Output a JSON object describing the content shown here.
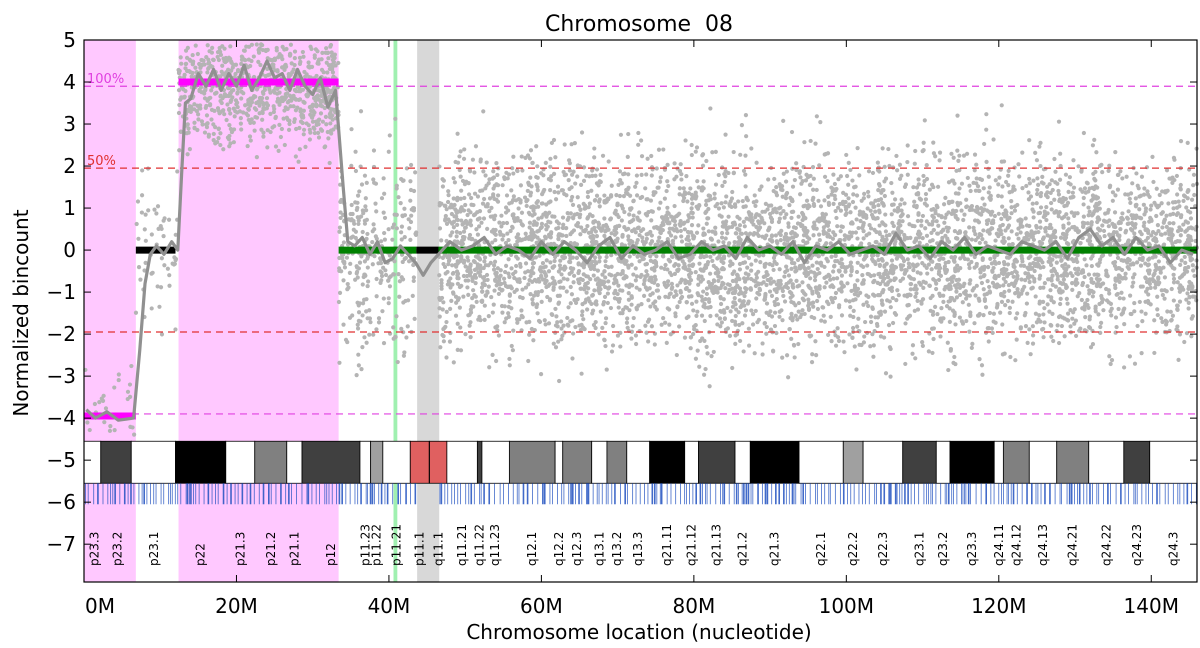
{
  "chart_data": {
    "type": "scatter",
    "title": "Chromosome  08",
    "xlabel": "Chromosome location (nucleotide)",
    "ylabel": "Normalized bincount",
    "xlim": [
      0,
      146
    ],
    "ylim": [
      -7.9,
      5
    ],
    "x_unit": "M nucleotides",
    "y_ticks": [
      5,
      4,
      3,
      2,
      1,
      0,
      -1,
      -2,
      -3,
      -4,
      -5,
      -6,
      -7
    ],
    "x_ticks": [
      0,
      20,
      40,
      60,
      80,
      100,
      120,
      140
    ],
    "x_tick_labels": [
      "0M",
      "20M",
      "40M",
      "60M",
      "80M",
      "100M",
      "120M",
      "140M"
    ],
    "reference_lines": [
      {
        "y": 3.9,
        "label": "100%",
        "color": "#e040e0",
        "style": "dashed"
      },
      {
        "y": 1.95,
        "label": "50%",
        "color": "#e03030",
        "style": "dashed"
      },
      {
        "y": -1.95,
        "label": "",
        "color": "#e03030",
        "style": "dashed"
      },
      {
        "y": -3.9,
        "label": "",
        "color": "#e040e0",
        "style": "dashed"
      }
    ],
    "shaded_regions": [
      {
        "x0": 0,
        "x1": 6.8,
        "color": "#ffc8ff",
        "meaning": "loss"
      },
      {
        "x0": 12.4,
        "x1": 33.4,
        "color": "#ffc8ff",
        "meaning": "gain"
      },
      {
        "x0": 43.7,
        "x1": 46.6,
        "color": "#d8d8d8",
        "meaning": "centromere"
      },
      {
        "x0": 40.6,
        "x1": 41.1,
        "color": "#a0f0b0",
        "meaning": "marker"
      }
    ],
    "segments": [
      {
        "x0": 0,
        "x1": 6.8,
        "y": -3.95,
        "color": "#ff00ff"
      },
      {
        "x0": 6.8,
        "x1": 12.0,
        "y": 0.0,
        "color": "#000000"
      },
      {
        "x0": 12.4,
        "x1": 33.4,
        "y": 4.0,
        "color": "#ff00ff"
      },
      {
        "x0": 33.4,
        "x1": 43.6,
        "y": 0.0,
        "color": "#008000"
      },
      {
        "x0": 43.6,
        "x1": 46.5,
        "y": 0.0,
        "color": "#000000"
      },
      {
        "x0": 46.5,
        "x1": 146,
        "y": 0.0,
        "color": "#008000"
      }
    ],
    "smoothed_line": {
      "color": "#909090",
      "points": [
        [
          0.3,
          -3.8
        ],
        [
          1.5,
          -4.0
        ],
        [
          3,
          -3.85
        ],
        [
          4.5,
          -4.05
        ],
        [
          6.5,
          -4.0
        ],
        [
          7.3,
          -2.4
        ],
        [
          8,
          -0.8
        ],
        [
          8.7,
          -0.1
        ],
        [
          9.5,
          0.1
        ],
        [
          10.5,
          -0.1
        ],
        [
          11.5,
          0.2
        ],
        [
          12.3,
          0.0
        ],
        [
          12.8,
          1.8
        ],
        [
          13.3,
          3.5
        ],
        [
          14,
          3.6
        ],
        [
          15,
          4.2
        ],
        [
          16,
          3.9
        ],
        [
          17,
          4.3
        ],
        [
          18,
          3.8
        ],
        [
          19,
          4.2
        ],
        [
          20,
          3.9
        ],
        [
          21,
          4.4
        ],
        [
          22,
          3.8
        ],
        [
          23,
          4.1
        ],
        [
          24,
          4.5
        ],
        [
          25,
          4.1
        ],
        [
          26,
          4.2
        ],
        [
          27,
          3.8
        ],
        [
          28,
          4.3
        ],
        [
          29,
          3.9
        ],
        [
          30,
          3.7
        ],
        [
          31,
          4.1
        ],
        [
          32,
          3.4
        ],
        [
          33,
          3.8
        ],
        [
          34,
          1.5
        ],
        [
          34.6,
          0.2
        ],
        [
          35.5,
          0.1
        ],
        [
          36.5,
          0.3
        ],
        [
          37.5,
          -0.1
        ],
        [
          38.5,
          0.2
        ],
        [
          39.5,
          -0.3
        ],
        [
          40.5,
          -0.2
        ],
        [
          41.5,
          0.1
        ],
        [
          42.5,
          -0.1
        ],
        [
          43.5,
          -0.3
        ],
        [
          44.5,
          -0.6
        ],
        [
          45.5,
          -0.3
        ],
        [
          46.5,
          -0.1
        ],
        [
          48,
          0.2
        ],
        [
          49.5,
          0.0
        ],
        [
          51,
          0.1
        ],
        [
          52.5,
          0.3
        ],
        [
          54,
          -0.1
        ],
        [
          55.5,
          0.1
        ],
        [
          57,
          0.0
        ],
        [
          58.5,
          -0.2
        ],
        [
          60,
          0.2
        ],
        [
          61.5,
          -0.1
        ],
        [
          63,
          0.2
        ],
        [
          64.5,
          0.0
        ],
        [
          66,
          -0.3
        ],
        [
          67.5,
          0.1
        ],
        [
          69,
          0.3
        ],
        [
          70.5,
          -0.2
        ],
        [
          72,
          0.1
        ],
        [
          73.5,
          -0.1
        ],
        [
          75,
          0.0
        ],
        [
          76.5,
          0.2
        ],
        [
          78,
          -0.2
        ],
        [
          79.5,
          -0.1
        ],
        [
          81,
          0.2
        ],
        [
          82.5,
          0.0
        ],
        [
          84,
          0.1
        ],
        [
          85.5,
          -0.2
        ],
        [
          87,
          0.3
        ],
        [
          88.5,
          0.0
        ],
        [
          90,
          0.1
        ],
        [
          91.5,
          -0.1
        ],
        [
          93,
          0.2
        ],
        [
          94.5,
          -0.3
        ],
        [
          96,
          0.1
        ],
        [
          97.5,
          0.0
        ],
        [
          99,
          0.2
        ],
        [
          100.5,
          -0.1
        ],
        [
          102,
          0.0
        ],
        [
          103.5,
          0.1
        ],
        [
          105,
          -0.1
        ],
        [
          106.5,
          0.4
        ],
        [
          108,
          0.0
        ],
        [
          109.5,
          0.1
        ],
        [
          111,
          -0.2
        ],
        [
          112.5,
          0.2
        ],
        [
          114,
          0.0
        ],
        [
          115.5,
          0.3
        ],
        [
          117,
          -0.1
        ],
        [
          118.5,
          0.1
        ],
        [
          120,
          0.0
        ],
        [
          121.5,
          -0.1
        ],
        [
          123,
          0.2
        ],
        [
          124.5,
          0.1
        ],
        [
          126,
          0.0
        ],
        [
          127.5,
          0.2
        ],
        [
          129,
          -0.2
        ],
        [
          130.5,
          0.3
        ],
        [
          132,
          0.5
        ],
        [
          133.5,
          0.1
        ],
        [
          135,
          0.3
        ],
        [
          136.5,
          -0.1
        ],
        [
          138,
          0.3
        ],
        [
          139.5,
          0.0
        ],
        [
          141,
          0.1
        ],
        [
          142.5,
          -0.3
        ],
        [
          144,
          0.0
        ],
        [
          145.5,
          -0.1
        ]
      ]
    },
    "scatter": {
      "color": "#b4b4b4",
      "regions": [
        {
          "x0": 0,
          "x1": 6.8,
          "y_center": -3.9,
          "y_spread": 0.9,
          "density": 6
        },
        {
          "x0": 6.8,
          "x1": 12.4,
          "y_center": 0.0,
          "y_spread": 1.2,
          "density": 10
        },
        {
          "x0": 12.4,
          "x1": 33.4,
          "y_center": 3.9,
          "y_spread": 0.95,
          "density": 40
        },
        {
          "x0": 33.4,
          "x1": 43.6,
          "y_center": 0.0,
          "y_spread": 1.5,
          "density": 30
        },
        {
          "x0": 46.6,
          "x1": 146,
          "y_center": 0.0,
          "y_spread": 1.5,
          "density": 50
        }
      ]
    },
    "ideogram": {
      "y_top": -4.55,
      "y_bottom": -5.55,
      "bands": [
        {
          "x0": 0,
          "x1": 2.2,
          "color": "#ffffff"
        },
        {
          "x0": 2.2,
          "x1": 6.2,
          "color": "#404040"
        },
        {
          "x0": 6.2,
          "x1": 12.0,
          "color": "#ffffff"
        },
        {
          "x0": 12.0,
          "x1": 18.6,
          "color": "#000000"
        },
        {
          "x0": 18.6,
          "x1": 22.4,
          "color": "#ffffff"
        },
        {
          "x0": 22.4,
          "x1": 26.6,
          "color": "#808080"
        },
        {
          "x0": 26.6,
          "x1": 28.6,
          "color": "#ffffff"
        },
        {
          "x0": 28.6,
          "x1": 36.2,
          "color": "#404040"
        },
        {
          "x0": 36.2,
          "x1": 37.6,
          "color": "#ffffff"
        },
        {
          "x0": 37.6,
          "x1": 39.2,
          "color": "#a0a0a0"
        },
        {
          "x0": 39.2,
          "x1": 42.8,
          "color": "#ffffff"
        },
        {
          "x0": 42.8,
          "x1": 45.3,
          "color": "#e06060"
        },
        {
          "x0": 45.3,
          "x1": 47.6,
          "color": "#e06060"
        },
        {
          "x0": 47.6,
          "x1": 51.6,
          "color": "#ffffff"
        },
        {
          "x0": 51.6,
          "x1": 52.2,
          "color": "#404040"
        },
        {
          "x0": 52.2,
          "x1": 55.8,
          "color": "#ffffff"
        },
        {
          "x0": 55.8,
          "x1": 61.8,
          "color": "#808080"
        },
        {
          "x0": 61.8,
          "x1": 62.8,
          "color": "#ffffff"
        },
        {
          "x0": 62.8,
          "x1": 66.6,
          "color": "#808080"
        },
        {
          "x0": 66.6,
          "x1": 68.6,
          "color": "#ffffff"
        },
        {
          "x0": 68.6,
          "x1": 71.2,
          "color": "#808080"
        },
        {
          "x0": 71.2,
          "x1": 74.2,
          "color": "#ffffff"
        },
        {
          "x0": 74.2,
          "x1": 78.8,
          "color": "#000000"
        },
        {
          "x0": 78.8,
          "x1": 80.6,
          "color": "#ffffff"
        },
        {
          "x0": 80.6,
          "x1": 85.4,
          "color": "#404040"
        },
        {
          "x0": 85.4,
          "x1": 87.4,
          "color": "#ffffff"
        },
        {
          "x0": 87.4,
          "x1": 93.8,
          "color": "#000000"
        },
        {
          "x0": 93.8,
          "x1": 99.6,
          "color": "#ffffff"
        },
        {
          "x0": 99.6,
          "x1": 102.2,
          "color": "#a0a0a0"
        },
        {
          "x0": 102.2,
          "x1": 107.4,
          "color": "#ffffff"
        },
        {
          "x0": 107.4,
          "x1": 111.8,
          "color": "#404040"
        },
        {
          "x0": 111.8,
          "x1": 113.6,
          "color": "#ffffff"
        },
        {
          "x0": 113.6,
          "x1": 119.4,
          "color": "#000000"
        },
        {
          "x0": 119.4,
          "x1": 120.6,
          "color": "#ffffff"
        },
        {
          "x0": 120.6,
          "x1": 124.0,
          "color": "#808080"
        },
        {
          "x0": 124.0,
          "x1": 127.6,
          "color": "#ffffff"
        },
        {
          "x0": 127.6,
          "x1": 131.8,
          "color": "#808080"
        },
        {
          "x0": 131.8,
          "x1": 136.4,
          "color": "#ffffff"
        },
        {
          "x0": 136.4,
          "x1": 139.8,
          "color": "#404040"
        },
        {
          "x0": 139.8,
          "x1": 146,
          "color": "#ffffff"
        }
      ],
      "centromere_divider_x": 45.3
    },
    "gene_track": {
      "y_top": -5.55,
      "y_bottom": -6.05,
      "color": "#2050c0"
    },
    "band_labels": [
      {
        "x": 1.4,
        "text": "p23.3"
      },
      {
        "x": 4.4,
        "text": "p23.2"
      },
      {
        "x": 9.2,
        "text": "p23.1"
      },
      {
        "x": 15.3,
        "text": "p22"
      },
      {
        "x": 20.5,
        "text": "p21.3"
      },
      {
        "x": 24.5,
        "text": "p21.2"
      },
      {
        "x": 27.6,
        "text": "p21.1"
      },
      {
        "x": 32.4,
        "text": "p12"
      },
      {
        "x": 36.9,
        "text": "p11.23"
      },
      {
        "x": 38.4,
        "text": "p11.22"
      },
      {
        "x": 41.0,
        "text": "p11.21"
      },
      {
        "x": 44.0,
        "text": "p11.1"
      },
      {
        "x": 46.5,
        "text": "q11.1"
      },
      {
        "x": 49.6,
        "text": "q11.21"
      },
      {
        "x": 51.9,
        "text": "q11.22"
      },
      {
        "x": 53.9,
        "text": "q11.23"
      },
      {
        "x": 58.8,
        "text": "q12.1"
      },
      {
        "x": 62.3,
        "text": "q12.2"
      },
      {
        "x": 64.7,
        "text": "q12.3"
      },
      {
        "x": 67.6,
        "text": "q13.1"
      },
      {
        "x": 69.9,
        "text": "q13.2"
      },
      {
        "x": 72.7,
        "text": "q13.3"
      },
      {
        "x": 76.5,
        "text": "q21.11"
      },
      {
        "x": 79.7,
        "text": "q21.12"
      },
      {
        "x": 83.0,
        "text": "q21.13"
      },
      {
        "x": 86.4,
        "text": "q21.2"
      },
      {
        "x": 90.6,
        "text": "q21.3"
      },
      {
        "x": 96.7,
        "text": "q22.1"
      },
      {
        "x": 100.9,
        "text": "q22.2"
      },
      {
        "x": 104.8,
        "text": "q22.3"
      },
      {
        "x": 109.6,
        "text": "q23.1"
      },
      {
        "x": 112.7,
        "text": "q23.2"
      },
      {
        "x": 116.5,
        "text": "q23.3"
      },
      {
        "x": 120.0,
        "text": "q24.11"
      },
      {
        "x": 122.3,
        "text": "q24.12"
      },
      {
        "x": 125.8,
        "text": "q24.13"
      },
      {
        "x": 129.7,
        "text": "q24.21"
      },
      {
        "x": 134.1,
        "text": "q24.22"
      },
      {
        "x": 138.1,
        "text": "q24.23"
      },
      {
        "x": 142.9,
        "text": "q24.3"
      }
    ]
  }
}
